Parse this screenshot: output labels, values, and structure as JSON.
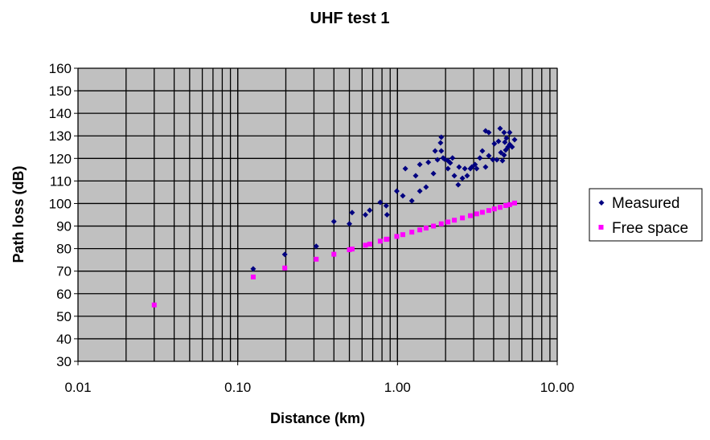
{
  "chart_data": {
    "type": "scatter",
    "title": "UHF test 1",
    "xlabel": "Distance (km)",
    "ylabel": "Path loss (dB)",
    "xscale": "log",
    "xlim": [
      0.01,
      10
    ],
    "ylim": [
      30,
      160
    ],
    "x_ticks": [
      0.01,
      0.1,
      1,
      10
    ],
    "x_tick_labels": [
      "0.01",
      "0.10",
      "1.00",
      "10.00"
    ],
    "y_ticks": [
      30,
      40,
      50,
      60,
      70,
      80,
      90,
      100,
      110,
      120,
      130,
      140,
      150,
      160
    ],
    "grid": true,
    "plot_background": "#c0c0c0",
    "legend_position": "right",
    "series": [
      {
        "name": "Measured",
        "marker": "diamond",
        "color": "#000080",
        "x": [
          0.125,
          0.197,
          0.31,
          0.4,
          0.5,
          0.52,
          0.63,
          0.67,
          0.78,
          0.85,
          0.86,
          0.99,
          1.08,
          1.23,
          1.12,
          1.3,
          1.38,
          1.38,
          1.51,
          1.56,
          1.68,
          1.72,
          1.78,
          1.86,
          1.88,
          1.88,
          1.93,
          1.97,
          2.07,
          2.14,
          2.21,
          2.07,
          2.27,
          2.4,
          2.43,
          2.55,
          2.64,
          2.73,
          2.86,
          2.92,
          3.06,
          3.13,
          3.28,
          3.4,
          3.56,
          3.73,
          3.56,
          3.73,
          3.95,
          4.04,
          4.19,
          4.39,
          4.29,
          4.44,
          4.54,
          4.65,
          4.7,
          4.76,
          4.81,
          4.92,
          5.04,
          5.04,
          5.22,
          5.41,
          4.65
        ],
        "y": [
          71,
          77.4,
          81,
          92,
          91,
          96,
          95,
          97,
          100.5,
          99,
          95,
          105.5,
          103.4,
          101.2,
          115.5,
          112.3,
          117.3,
          105.5,
          107.3,
          118.3,
          113.3,
          123.3,
          119.4,
          126.9,
          129.4,
          123.3,
          120.2,
          119.7,
          119.0,
          118.0,
          120.2,
          115.5,
          112.3,
          108.3,
          116.2,
          111.2,
          115.5,
          112.3,
          115.5,
          116.2,
          117.3,
          115.5,
          120.2,
          123.3,
          116.2,
          121.2,
          132.2,
          131.5,
          119.5,
          126.5,
          119.4,
          133.3,
          127.6,
          122.6,
          119.0,
          131.5,
          127.2,
          123.7,
          129.0,
          125.1,
          131.5,
          126.2,
          125.1,
          128.3,
          121.5
        ]
      },
      {
        "name": "Free space",
        "marker": "square",
        "color": "#ff00ff",
        "x": [
          0.03,
          0.125,
          0.197,
          0.31,
          0.4,
          0.5,
          0.52,
          0.63,
          0.67,
          0.78,
          0.85,
          0.86,
          0.99,
          1.08,
          1.23,
          1.38,
          1.51,
          1.68,
          1.88,
          2.07,
          2.27,
          2.55,
          2.86,
          3.13,
          3.4,
          3.73,
          4.04,
          4.39,
          4.76,
          5.04,
          5.41
        ],
        "y": [
          55.0,
          67.4,
          71.4,
          75.3,
          77.5,
          79.5,
          79.8,
          81.5,
          82.0,
          83.3,
          84.1,
          84.2,
          85.4,
          86.2,
          87.3,
          88.3,
          89.1,
          90.0,
          91.0,
          91.8,
          92.6,
          93.6,
          94.6,
          95.4,
          96.1,
          96.9,
          97.6,
          98.3,
          99.1,
          99.5,
          100.2
        ]
      }
    ]
  }
}
